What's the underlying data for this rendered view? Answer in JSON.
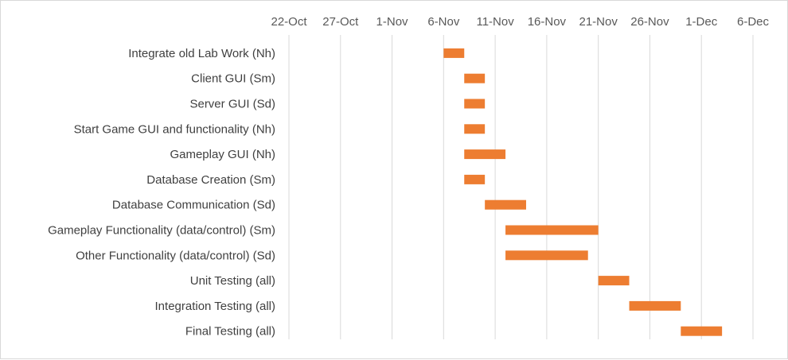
{
  "chart_data": {
    "type": "bar",
    "orientation": "horizontal",
    "subtype": "gantt",
    "title": "",
    "xlabel": "",
    "ylabel": "",
    "x_axis_position": "top",
    "grid": "vertical",
    "legend": "none",
    "colors": {
      "bar": "#ed7d31",
      "grid": "#d9d9d9",
      "text": "#595959"
    },
    "xlim": [
      "2015-10-22",
      "2015-12-06"
    ],
    "x_ticks": [
      {
        "date": "2015-10-22",
        "label": "22-Oct"
      },
      {
        "date": "2015-10-27",
        "label": "27-Oct"
      },
      {
        "date": "2015-11-01",
        "label": "1-Nov"
      },
      {
        "date": "2015-11-06",
        "label": "6-Nov"
      },
      {
        "date": "2015-11-11",
        "label": "11-Nov"
      },
      {
        "date": "2015-11-16",
        "label": "16-Nov"
      },
      {
        "date": "2015-11-21",
        "label": "21-Nov"
      },
      {
        "date": "2015-11-26",
        "label": "26-Nov"
      },
      {
        "date": "2015-12-01",
        "label": "1-Dec"
      },
      {
        "date": "2015-12-06",
        "label": "6-Dec"
      }
    ],
    "tasks": [
      {
        "name": "Integrate old Lab Work (Nh)",
        "start": "2015-11-06",
        "end": "2015-11-08"
      },
      {
        "name": "Client GUI (Sm)",
        "start": "2015-11-08",
        "end": "2015-11-10"
      },
      {
        "name": "Server GUI (Sd)",
        "start": "2015-11-08",
        "end": "2015-11-10"
      },
      {
        "name": "Start Game GUI and functionality (Nh)",
        "start": "2015-11-08",
        "end": "2015-11-10"
      },
      {
        "name": "Gameplay GUI (Nh)",
        "start": "2015-11-08",
        "end": "2015-11-12"
      },
      {
        "name": "Database Creation (Sm)",
        "start": "2015-11-08",
        "end": "2015-11-10"
      },
      {
        "name": "Database Communication (Sd)",
        "start": "2015-11-10",
        "end": "2015-11-14"
      },
      {
        "name": "Gameplay Functionality (data/control) (Sm)",
        "start": "2015-11-12",
        "end": "2015-11-21"
      },
      {
        "name": "Other Functionality (data/control) (Sd)",
        "start": "2015-11-12",
        "end": "2015-11-20"
      },
      {
        "name": "Unit Testing (all)",
        "start": "2015-11-21",
        "end": "2015-11-24"
      },
      {
        "name": "Integration Testing (all)",
        "start": "2015-11-24",
        "end": "2015-11-29"
      },
      {
        "name": "Final Testing (all)",
        "start": "2015-11-29",
        "end": "2015-12-03"
      }
    ]
  }
}
